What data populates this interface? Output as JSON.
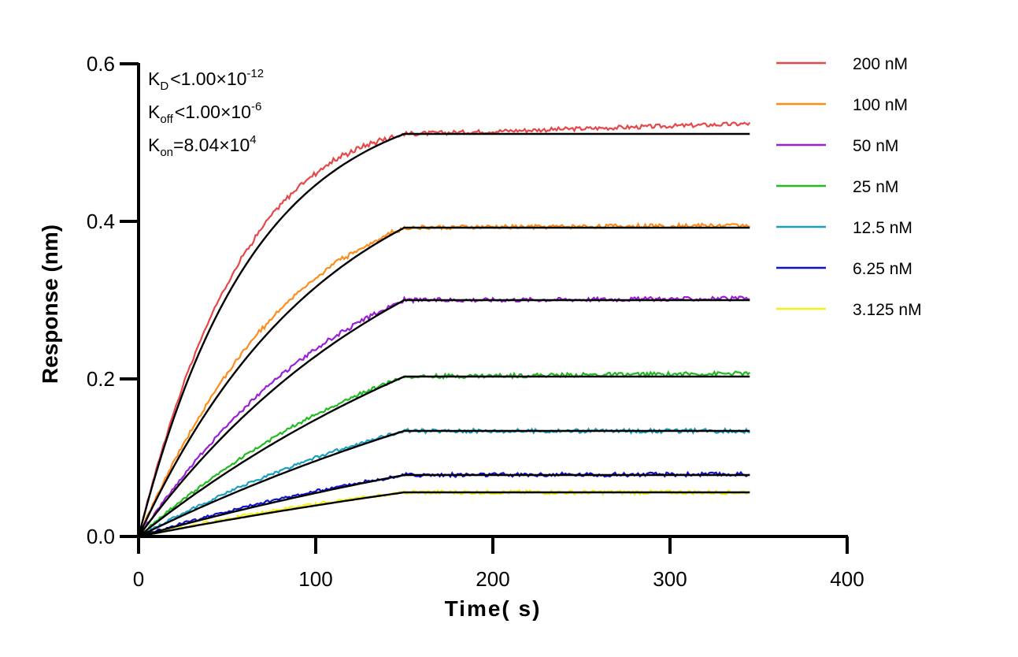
{
  "chart_data": {
    "type": "line",
    "xlabel": "Time( s)",
    "ylabel": "Response (nm)",
    "xlim": [
      0,
      400
    ],
    "ylim": [
      0,
      0.6
    ],
    "xticks": [
      "0",
      "100",
      "200",
      "300",
      "400"
    ],
    "yticks": [
      "0.0",
      "0.2",
      "0.4",
      "0.6"
    ],
    "grid": false,
    "legend_position": "top-right",
    "association_end": 150,
    "x_end": 345,
    "annotations": {
      "kd": {
        "base": "K",
        "sub": "D",
        "rel": "<",
        "mant": "1.00×10",
        "exp": "-12"
      },
      "koff": {
        "base": "K",
        "sub": "off",
        "rel": "<",
        "mant": "1.00×10",
        "exp": "-6"
      },
      "kon": {
        "base": "K",
        "sub": "on",
        "rel": "=",
        "mant": "8.04×10",
        "exp": "4"
      }
    },
    "series": [
      {
        "name": "200 nM",
        "color": "#e8474a",
        "plateau": 0.511,
        "k": 0.0155,
        "dissoc_end": 0.524
      },
      {
        "name": "100 nM",
        "color": "#ff8c1a",
        "plateau": 0.392,
        "k": 0.0095,
        "dissoc_end": 0.395
      },
      {
        "name": "50 nM",
        "color": "#9b1fd6",
        "plateau": 0.3,
        "k": 0.0062,
        "dissoc_end": 0.302
      },
      {
        "name": "25 nM",
        "color": "#22bb22",
        "plateau": 0.203,
        "k": 0.004,
        "dissoc_end": 0.207
      },
      {
        "name": "12.5 nM",
        "color": "#1a9fbf",
        "plateau": 0.134,
        "k": 0.003,
        "dissoc_end": 0.134
      },
      {
        "name": "6.25 nM",
        "color": "#1010d0",
        "plateau": 0.078,
        "k": 0.0025,
        "dissoc_end": 0.079
      },
      {
        "name": "3.125 nM",
        "color": "#f5f01a",
        "plateau": 0.056,
        "k": 0.0022,
        "dissoc_end": 0.056
      }
    ],
    "fit_color": "#000000"
  }
}
